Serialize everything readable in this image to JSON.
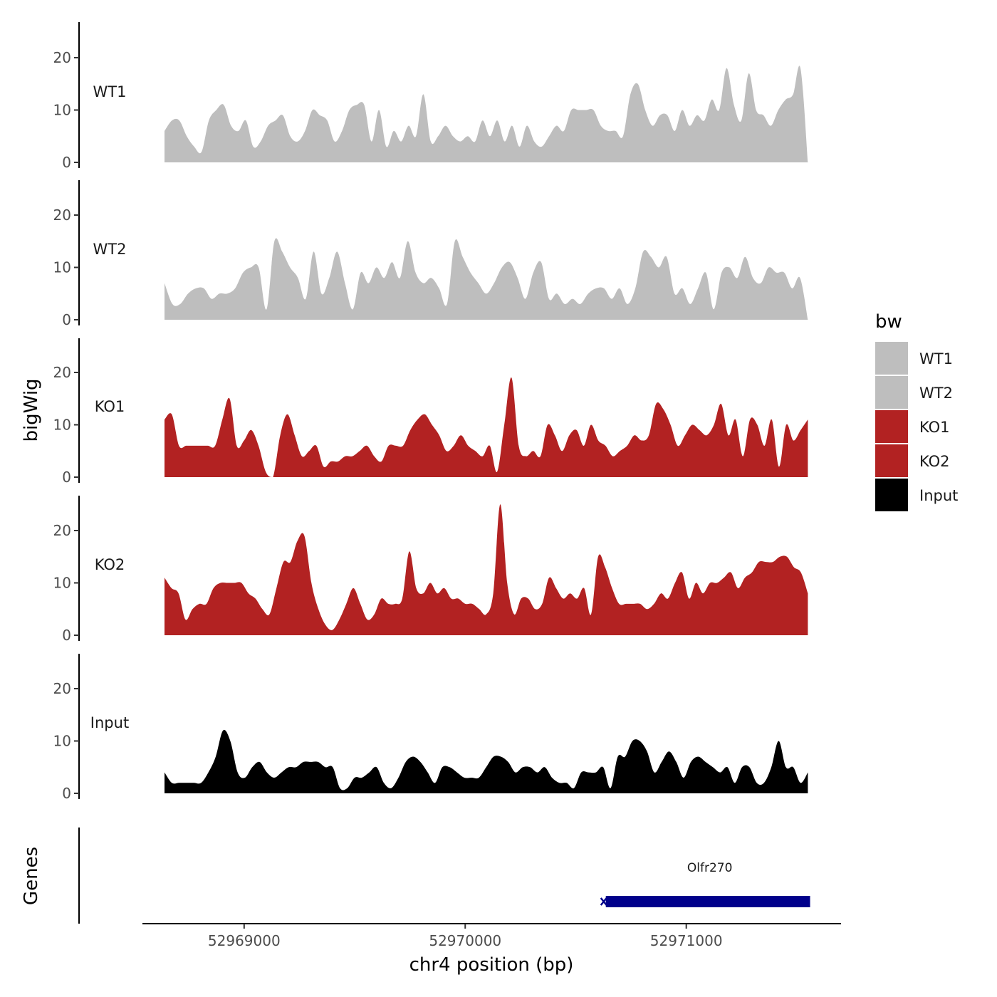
{
  "chart_data": {
    "type": "area",
    "title": "",
    "ylabel": "bigWig",
    "xlabel": "chr4 position (bp)",
    "genes_label": "Genes",
    "chromosome": "chr4",
    "xlim": [
      52968540,
      52971700
    ],
    "x_ticks": [
      52969000,
      52970000,
      52971000
    ],
    "x_tick_labels": [
      "52969000",
      "52970000",
      "52971000"
    ],
    "ylim": [
      0,
      27
    ],
    "y_ticks": [
      0,
      10,
      20
    ],
    "y_tick_labels": [
      "0",
      "10",
      "20"
    ],
    "legend": {
      "title": "bw",
      "entries": [
        {
          "label": "WT1",
          "color": "#BEBEBE"
        },
        {
          "label": "WT2",
          "color": "#BEBEBE"
        },
        {
          "label": "KO1",
          "color": "#B22222"
        },
        {
          "label": "KO2",
          "color": "#B22222"
        },
        {
          "label": "Input",
          "color": "#000000"
        }
      ]
    },
    "x_start": 52968640,
    "x_end": 52971550,
    "series": [
      {
        "name": "WT1",
        "color": "#BEBEBE",
        "values": [
          6,
          8,
          8,
          5,
          3,
          2,
          8,
          10,
          11,
          7,
          6,
          8,
          3,
          4,
          7,
          8,
          9,
          5,
          4,
          6,
          10,
          9,
          8,
          4,
          6,
          10,
          11,
          11,
          4,
          10,
          3,
          6,
          4,
          7,
          5,
          13,
          4,
          5,
          7,
          5,
          4,
          5,
          4,
          8,
          5,
          8,
          4,
          7,
          3,
          7,
          4,
          3,
          5,
          7,
          6,
          10,
          10,
          10,
          10,
          7,
          6,
          6,
          5,
          13,
          15,
          10,
          7,
          9,
          9,
          6,
          10,
          7,
          9,
          8,
          12,
          10,
          18,
          11,
          8,
          17,
          10,
          9,
          7,
          10,
          12,
          13,
          18,
          0
        ]
      },
      {
        "name": "WT2",
        "color": "#BEBEBE",
        "values": [
          7,
          3,
          3,
          5,
          6,
          6,
          4,
          5,
          5,
          6,
          9,
          10,
          10,
          2,
          15,
          13,
          10,
          8,
          4,
          13,
          5,
          8,
          13,
          7,
          2,
          9,
          7,
          10,
          8,
          11,
          8,
          15,
          9,
          7,
          8,
          6,
          3,
          15,
          12,
          9,
          7,
          5,
          7,
          10,
          11,
          8,
          4,
          9,
          11,
          4,
          5,
          3,
          4,
          3,
          5,
          6,
          6,
          4,
          6,
          3,
          6,
          13,
          12,
          10,
          12,
          5,
          6,
          3,
          6,
          9,
          2,
          9,
          10,
          8,
          12,
          8,
          7,
          10,
          9,
          9,
          6,
          8,
          0
        ]
      },
      {
        "name": "KO1",
        "color": "#B22222",
        "values": [
          11,
          12,
          6,
          6,
          6,
          6,
          6,
          6,
          11,
          15,
          6,
          7,
          9,
          6,
          1,
          0,
          8,
          12,
          8,
          4,
          5,
          6,
          2,
          3,
          3,
          4,
          4,
          5,
          6,
          4,
          3,
          6,
          6,
          6,
          9,
          11,
          12,
          10,
          8,
          5,
          6,
          8,
          6,
          5,
          4,
          6,
          1,
          10,
          19,
          6,
          4,
          5,
          4,
          10,
          8,
          5,
          8,
          9,
          6,
          10,
          7,
          6,
          4,
          5,
          6,
          8,
          7,
          8,
          14,
          13,
          10,
          6,
          8,
          10,
          9,
          8,
          10,
          14,
          8,
          11,
          4,
          11,
          10,
          6,
          11,
          2,
          10,
          7,
          9,
          11
        ]
      },
      {
        "name": "KO2",
        "color": "#B22222",
        "values": [
          11,
          9,
          8,
          3,
          5,
          6,
          6,
          9,
          10,
          10,
          10,
          10,
          8,
          7,
          5,
          4,
          9,
          14,
          14,
          18,
          19,
          10,
          5,
          2,
          1,
          3,
          6,
          9,
          6,
          3,
          4,
          7,
          6,
          6,
          7,
          16,
          9,
          8,
          10,
          8,
          9,
          7,
          7,
          6,
          6,
          5,
          4,
          8,
          25,
          10,
          4,
          7,
          7,
          5,
          6,
          11,
          9,
          7,
          8,
          7,
          9,
          4,
          15,
          13,
          9,
          6,
          6,
          6,
          6,
          5,
          6,
          8,
          7,
          10,
          12,
          7,
          10,
          8,
          10,
          10,
          11,
          12,
          9,
          11,
          12,
          14,
          14,
          14,
          15,
          15,
          13,
          12,
          8
        ]
      },
      {
        "name": "Input",
        "color": "#000000",
        "values": [
          4,
          2,
          2,
          2,
          2,
          2,
          4,
          7,
          12,
          10,
          4,
          3,
          5,
          6,
          4,
          3,
          4,
          5,
          5,
          6,
          6,
          6,
          5,
          5,
          1,
          1,
          3,
          3,
          4,
          5,
          2,
          1,
          3,
          6,
          7,
          6,
          4,
          2,
          5,
          5,
          4,
          3,
          3,
          3,
          5,
          7,
          7,
          6,
          4,
          5,
          5,
          4,
          5,
          3,
          2,
          2,
          1,
          4,
          4,
          4,
          5,
          1,
          7,
          7,
          10,
          10,
          8,
          4,
          6,
          8,
          6,
          3,
          6,
          7,
          6,
          5,
          4,
          5,
          2,
          5,
          5,
          2,
          2,
          5,
          10,
          5,
          5,
          2,
          4
        ]
      }
    ],
    "genes": [
      {
        "name": "Olfr270",
        "start": 52970620,
        "end": 52971560,
        "color": "#00008B",
        "strand": "-"
      }
    ]
  }
}
